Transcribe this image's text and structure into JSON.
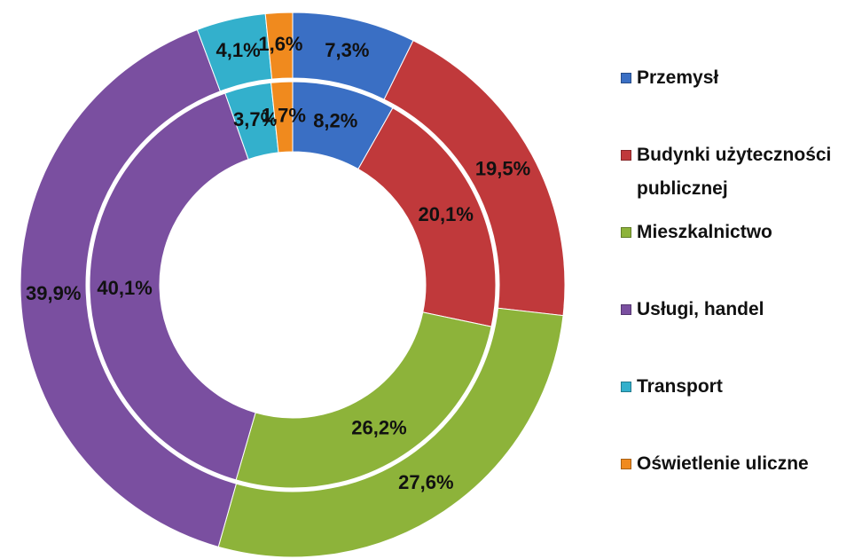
{
  "chart_data": {
    "type": "donut",
    "categories": [
      "Przemysł",
      "Budynki użyteczności publicznej",
      "Mieszkalnictwo",
      "Usługi, handel",
      "Transport",
      "Oświetlenie uliczne"
    ],
    "colors": [
      "#3a6fc4",
      "#c0393b",
      "#8db33a",
      "#7a4fa0",
      "#33b0cc",
      "#f08a1e"
    ],
    "series": [
      {
        "values": [
          8.2,
          20.1,
          26.2,
          40.1,
          3.7,
          1.7
        ],
        "value_labels": [
          "8,2%",
          "20,1%",
          "26,2%",
          "40,1%",
          "3,7%",
          "1,7%"
        ]
      },
      {
        "values": [
          7.3,
          19.5,
          27.6,
          39.9,
          4.1,
          1.6
        ],
        "value_labels": [
          "7,3%",
          "19,5%",
          "27,6%",
          "39,9%",
          "4,1%",
          "1,6%"
        ]
      }
    ],
    "legend": "right"
  }
}
